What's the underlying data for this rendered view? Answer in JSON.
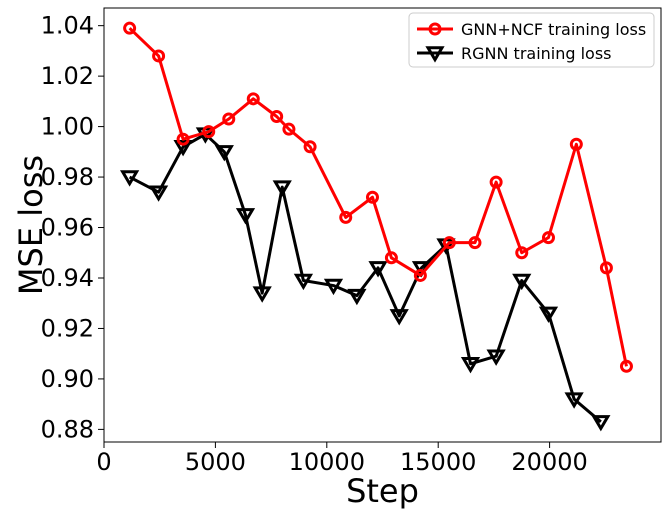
{
  "chart_data": {
    "type": "line",
    "title": "",
    "xlabel": "Step",
    "ylabel": "MSE loss",
    "xlim": [
      0,
      25000
    ],
    "ylim": [
      0.875,
      1.047
    ],
    "xticks": [
      0,
      5000,
      10000,
      15000,
      20000
    ],
    "xtick_labels": [
      "0",
      "5000",
      "10000",
      "15000",
      "20000"
    ],
    "yticks": [
      0.88,
      0.9,
      0.92,
      0.94,
      0.96,
      0.98,
      1.0,
      1.02,
      1.04
    ],
    "ytick_labels": [
      "0.88",
      "0.90",
      "0.92",
      "0.94",
      "0.96",
      "0.98",
      "1.00",
      "1.02",
      "1.04"
    ],
    "grid": false,
    "legend_position": "top-right",
    "series": [
      {
        "name": "GNN+NCF training loss",
        "color": "#ff0000",
        "marker": "circle",
        "x": [
          1150,
          2450,
          3550,
          4700,
          5600,
          6700,
          7750,
          8300,
          9250,
          10850,
          12050,
          12900,
          14200,
          15500,
          16650,
          17600,
          18750,
          19950,
          21200,
          22550,
          23450
        ],
        "y": [
          1.039,
          1.028,
          0.995,
          0.998,
          1.003,
          1.011,
          1.004,
          0.999,
          0.992,
          0.964,
          0.972,
          0.948,
          0.941,
          0.954,
          0.954,
          0.978,
          0.95,
          0.956,
          0.993,
          0.944,
          0.905
        ]
      },
      {
        "name": "RGNN training loss",
        "color": "#000000",
        "marker": "triangle-down",
        "x": [
          1150,
          2450,
          3550,
          4550,
          5400,
          6350,
          7100,
          8000,
          8950,
          10300,
          11350,
          12300,
          13250,
          14250,
          15350,
          16450,
          17600,
          18750,
          19950,
          21100,
          22300
        ],
        "y": [
          0.98,
          0.974,
          0.992,
          0.997,
          0.99,
          0.965,
          0.934,
          0.976,
          0.939,
          0.937,
          0.933,
          0.944,
          0.925,
          0.944,
          0.953,
          0.906,
          0.909,
          0.939,
          0.926,
          0.892,
          0.883
        ]
      }
    ]
  }
}
